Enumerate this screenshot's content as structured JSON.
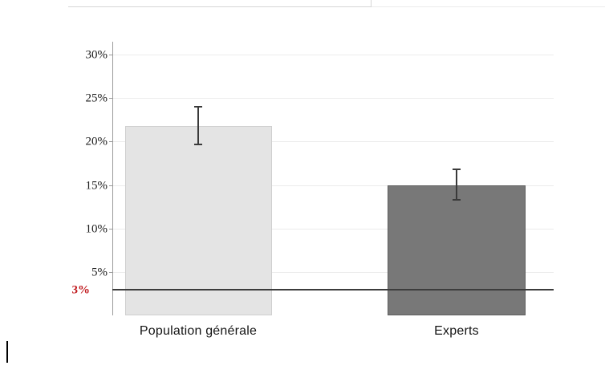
{
  "chart_data": {
    "type": "bar",
    "title": "",
    "xlabel": "",
    "ylabel": "",
    "categories": [
      "Population générale",
      "Experts"
    ],
    "values": [
      21.8,
      15.0
    ],
    "error_low": [
      19.7,
      13.3
    ],
    "error_high": [
      24.0,
      16.8
    ],
    "bar_colors": [
      "#e4e4e4",
      "#787878"
    ],
    "bar_edge_colors": [
      "#cfcfcf",
      "#5e5e5e"
    ],
    "error_bar_color": "#3a3a3a",
    "yticks": [
      5,
      10,
      15,
      20,
      25,
      30
    ],
    "ytick_labels": [
      "5%",
      "10%",
      "15%",
      "20%",
      "25%",
      "30%"
    ],
    "ylim": [
      0,
      32
    ],
    "grid": true,
    "legend": null,
    "reference_line": {
      "value": 3,
      "label": "3%",
      "label_color": "#c0181c",
      "line_color": "#3c3c3c"
    }
  }
}
